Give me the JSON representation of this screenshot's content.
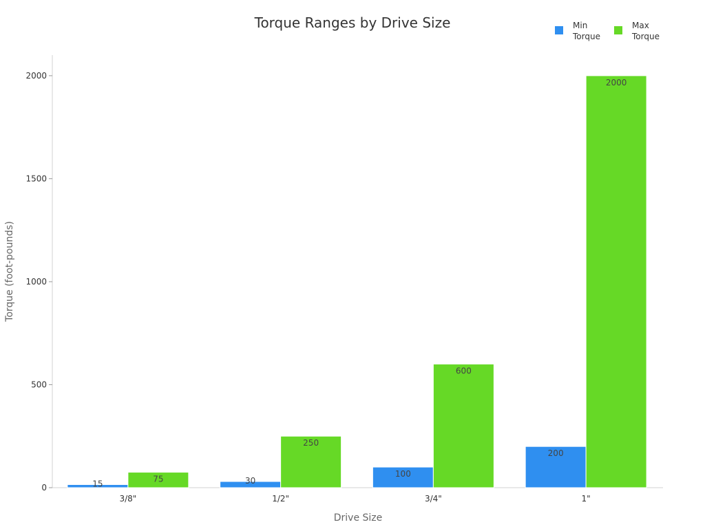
{
  "chart_data": {
    "type": "bar",
    "title": "Torque Ranges by Drive Size",
    "xlabel": "Drive Size",
    "ylabel": "Torque (foot-pounds)",
    "categories": [
      "3/8\"",
      "1/2\"",
      "3/4\"",
      "1\""
    ],
    "series": [
      {
        "name": "Min Torque",
        "name_lines": [
          "Min",
          "Torque"
        ],
        "color": "#2f8ff0",
        "values": [
          15,
          30,
          100,
          200
        ],
        "labels": [
          "15",
          "30",
          "100",
          "200"
        ]
      },
      {
        "name": "Max Torque",
        "name_lines": [
          "Max",
          "Torque"
        ],
        "color": "#66d926",
        "values": [
          75,
          250,
          600,
          2000
        ],
        "labels": [
          "75",
          "250",
          "600",
          "2000"
        ]
      }
    ],
    "ylim": [
      0,
      2100
    ],
    "yticks": [
      0,
      500,
      1000,
      1500,
      2000
    ],
    "legend_position": "top-right",
    "grid": false
  }
}
